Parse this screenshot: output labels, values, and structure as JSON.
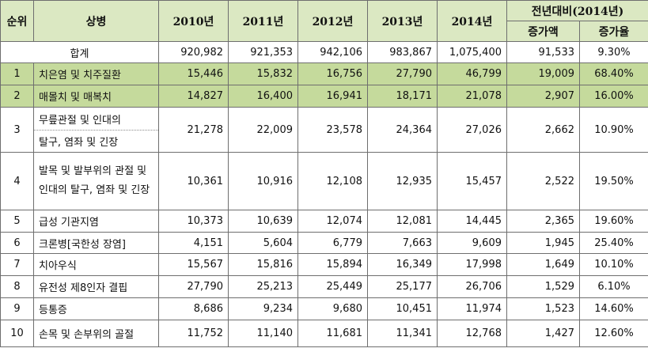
{
  "header": {
    "rank": "순위",
    "disease": "상병",
    "years": [
      "2010년",
      "2011년",
      "2012년",
      "2013년",
      "2014년"
    ],
    "yoy": "전년대비(2014년)",
    "increase_amount": "증가액",
    "increase_rate": "증가율"
  },
  "total": {
    "label": "합계",
    "values": [
      "920,982",
      "921,353",
      "942,106",
      "983,867",
      "1,075,400"
    ],
    "increase": "91,533",
    "rate": "9.30%"
  },
  "rows": [
    {
      "rank": "1",
      "name": "치은염 및 치주질환",
      "values": [
        "15,446",
        "15,832",
        "16,756",
        "27,790",
        "46,799"
      ],
      "increase": "19,009",
      "rate": "68.40%"
    },
    {
      "rank": "2",
      "name": "매몰치 및 매복치",
      "values": [
        "14,827",
        "16,400",
        "16,941",
        "18,171",
        "21,078"
      ],
      "increase": "2,907",
      "rate": "16.00%"
    },
    {
      "rank": "3",
      "name_line1": "무릎관절 및 인대의",
      "name_line2": "탈구, 염좌 및 긴장",
      "values": [
        "21,278",
        "22,009",
        "23,578",
        "24,364",
        "27,026"
      ],
      "increase": "2,662",
      "rate": "10.90%"
    },
    {
      "rank": "4",
      "name": "발목 및 발부위의 관절 및 인대의 탈구, 염좌 및 긴장",
      "values": [
        "10,361",
        "10,916",
        "12,108",
        "12,935",
        "15,457"
      ],
      "increase": "2,522",
      "rate": "19.50%"
    },
    {
      "rank": "5",
      "name": "급성 기관지염",
      "values": [
        "10,373",
        "10,639",
        "12,074",
        "12,081",
        "14,445"
      ],
      "increase": "2,365",
      "rate": "19.60%"
    },
    {
      "rank": "6",
      "name": "크론병[국한성 장염]",
      "values": [
        "4,151",
        "5,604",
        "6,779",
        "7,663",
        "9,609"
      ],
      "increase": "1,945",
      "rate": "25.40%"
    },
    {
      "rank": "7",
      "name": "치아우식",
      "values": [
        "15,567",
        "15,816",
        "15,894",
        "16,349",
        "17,998"
      ],
      "increase": "1,649",
      "rate": "10.10%"
    },
    {
      "rank": "8",
      "name": "유전성 제8인자 결핍",
      "values": [
        "27,790",
        "25,213",
        "25,449",
        "25,177",
        "26,706"
      ],
      "increase": "1,529",
      "rate": "6.10%"
    },
    {
      "rank": "9",
      "name": "등통증",
      "values": [
        "8,686",
        "9,234",
        "9,680",
        "10,451",
        "11,974"
      ],
      "increase": "1,523",
      "rate": "14.60%"
    },
    {
      "rank": "10",
      "name": "손목 및 손부위의 골절",
      "values": [
        "11,752",
        "11,140",
        "11,681",
        "11,341",
        "12,768"
      ],
      "increase": "1,427",
      "rate": "12.60%"
    }
  ]
}
